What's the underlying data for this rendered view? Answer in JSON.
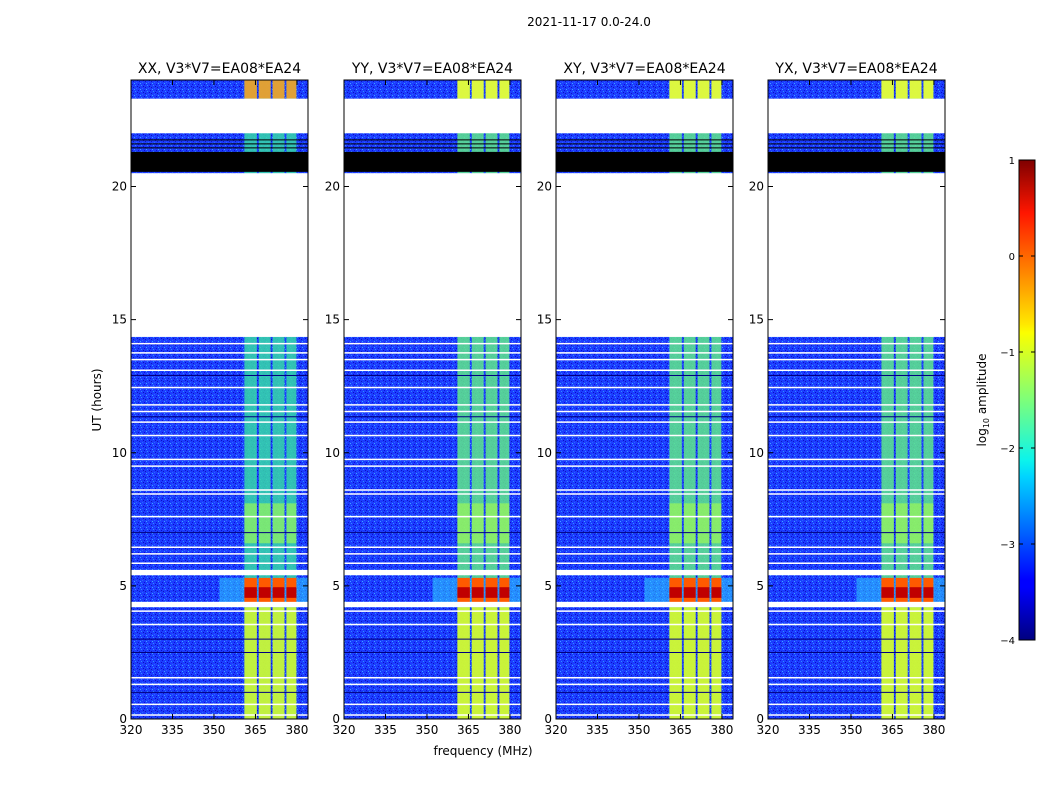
{
  "suptitle": "2021-11-17 0.0-24.0",
  "xlabel": "frequency (MHz)",
  "ylabel": "UT (hours)",
  "chart_data": {
    "type": "heatmap",
    "title": "2021-11-17 0.0-24.0",
    "xlabel": "frequency (MHz)",
    "ylabel": "UT (hours)",
    "xlim": [
      320,
      384
    ],
    "ylim": [
      0,
      24
    ],
    "x_ticks": [
      320,
      335,
      350,
      365,
      380
    ],
    "y_ticks": [
      0,
      5,
      10,
      15,
      20
    ],
    "panels": [
      {
        "title": "XX, V3*V7=EA08*EA24"
      },
      {
        "title": "YY, V3*V7=EA08*EA24"
      },
      {
        "title": "XY, V3*V7=EA08*EA24"
      },
      {
        "title": "YX, V3*V7=EA08*EA24"
      }
    ],
    "signal_band_mhz": [
      361,
      380
    ],
    "signal_channels_mhz": [
      [
        361,
        365.5
      ],
      [
        366.2,
        370.5
      ],
      [
        371.2,
        375.5
      ],
      [
        376.2,
        379.8
      ]
    ],
    "no_data_ut_ranges": [
      [
        14.35,
        20.5
      ],
      [
        22.0,
        23.3
      ]
    ],
    "flagged_ut_ranges": [
      [
        20.55,
        21.3
      ]
    ],
    "flagged_ut_lines": [
      21.45,
      21.6,
      21.75
    ],
    "bright_ut_ranges": [
      [
        4.3,
        5.3
      ]
    ],
    "colorbar": {
      "label": "log10 amplitude",
      "range": [
        -4,
        1
      ],
      "ticks": [
        -4,
        -3,
        -2,
        -1,
        0,
        1
      ],
      "colormap": "jet"
    }
  }
}
